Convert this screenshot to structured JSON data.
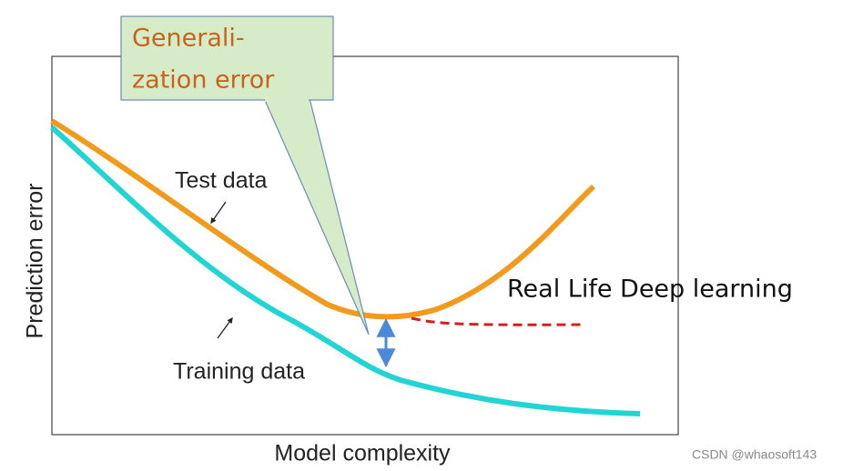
{
  "callout": {
    "lines": [
      "Generali-",
      "zation error"
    ]
  },
  "labels": {
    "test": "Test data",
    "training": "Training data"
  },
  "axes": {
    "y_label": "Prediction error",
    "x_label": "Model complexity"
  },
  "annotation": "Real Life Deep learning",
  "watermark": "CSDN @whaosoft143"
}
